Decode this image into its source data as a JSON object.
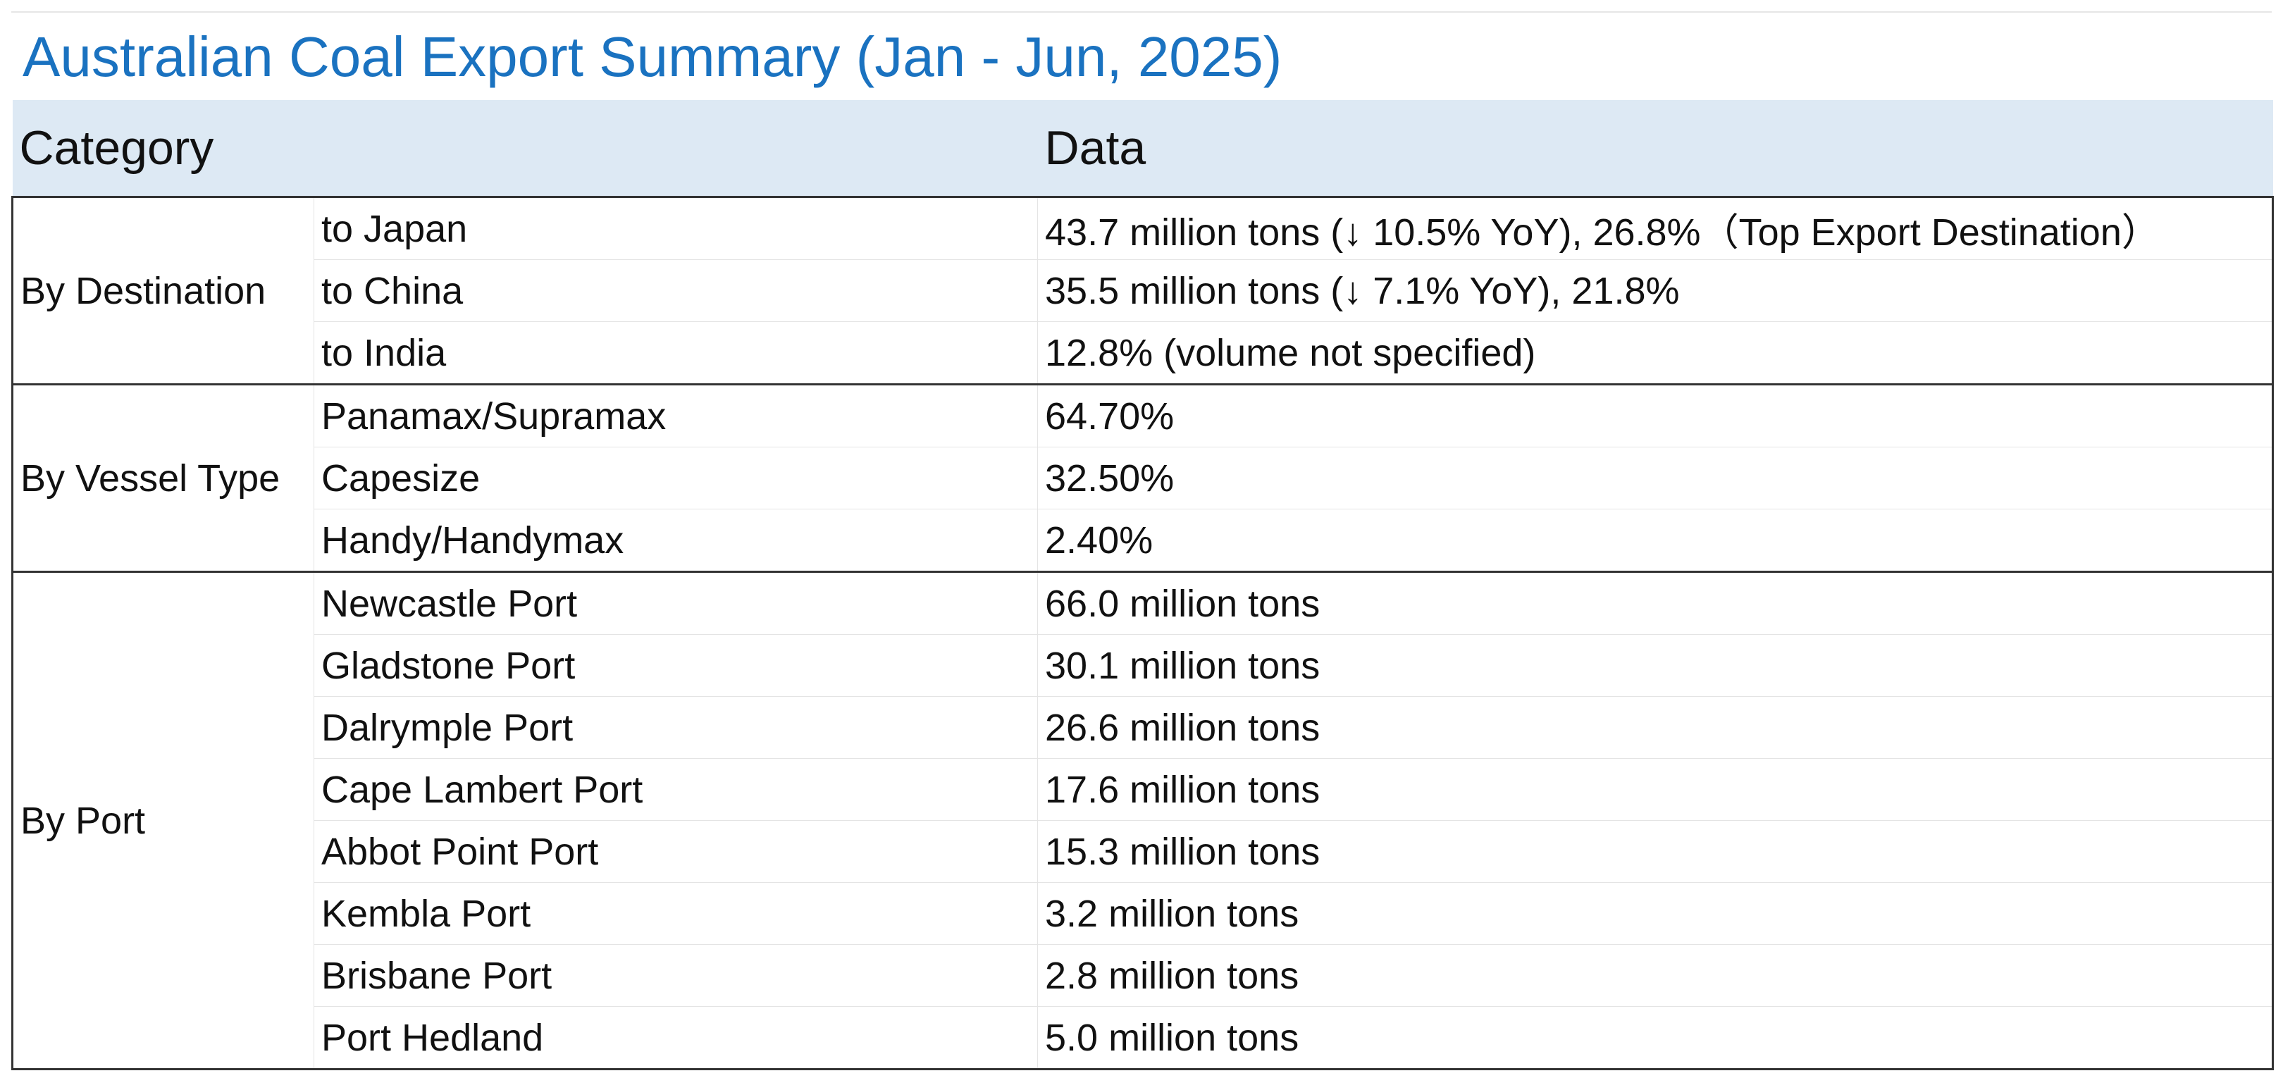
{
  "title": "Australian Coal Export Summary (Jan - Jun, 2025)",
  "header": {
    "category": "Category",
    "data": "Data"
  },
  "groups": [
    {
      "category": "By Destination",
      "rows": [
        {
          "item": "to Japan",
          "value": "43.7 million tons (↓ 10.5% YoY), 26.8%（Top Export Destination）"
        },
        {
          "item": "to China",
          "value": "35.5 million tons (↓ 7.1% YoY), 21.8%"
        },
        {
          "item": "to India",
          "value": "12.8% (volume not specified)"
        }
      ]
    },
    {
      "category": "By Vessel Type",
      "rows": [
        {
          "item": "Panamax/Supramax",
          "value": "64.70%"
        },
        {
          "item": "Capesize",
          "value": "32.50%"
        },
        {
          "item": "Handy/Handymax",
          "value": "2.40%"
        }
      ]
    },
    {
      "category": "By Port",
      "rows": [
        {
          "item": "Newcastle Port",
          "value": "66.0 million tons"
        },
        {
          "item": "Gladstone Port",
          "value": "30.1 million tons"
        },
        {
          "item": "Dalrymple Port",
          "value": "26.6 million tons"
        },
        {
          "item": "Cape Lambert Port",
          "value": "17.6 million tons"
        },
        {
          "item": "Abbot Point Port",
          "value": "15.3 million tons"
        },
        {
          "item": "Kembla Port",
          "value": "3.2 million tons"
        },
        {
          "item": "Brisbane Port",
          "value": "2.8 million tons"
        },
        {
          "item": "Port Hedland",
          "value": "5.0 million tons"
        }
      ]
    }
  ],
  "colors": {
    "title": "#1a72c0",
    "header_background": "#dde9f4",
    "group_border": "#333333",
    "row_divider": "#e4e4e4"
  }
}
